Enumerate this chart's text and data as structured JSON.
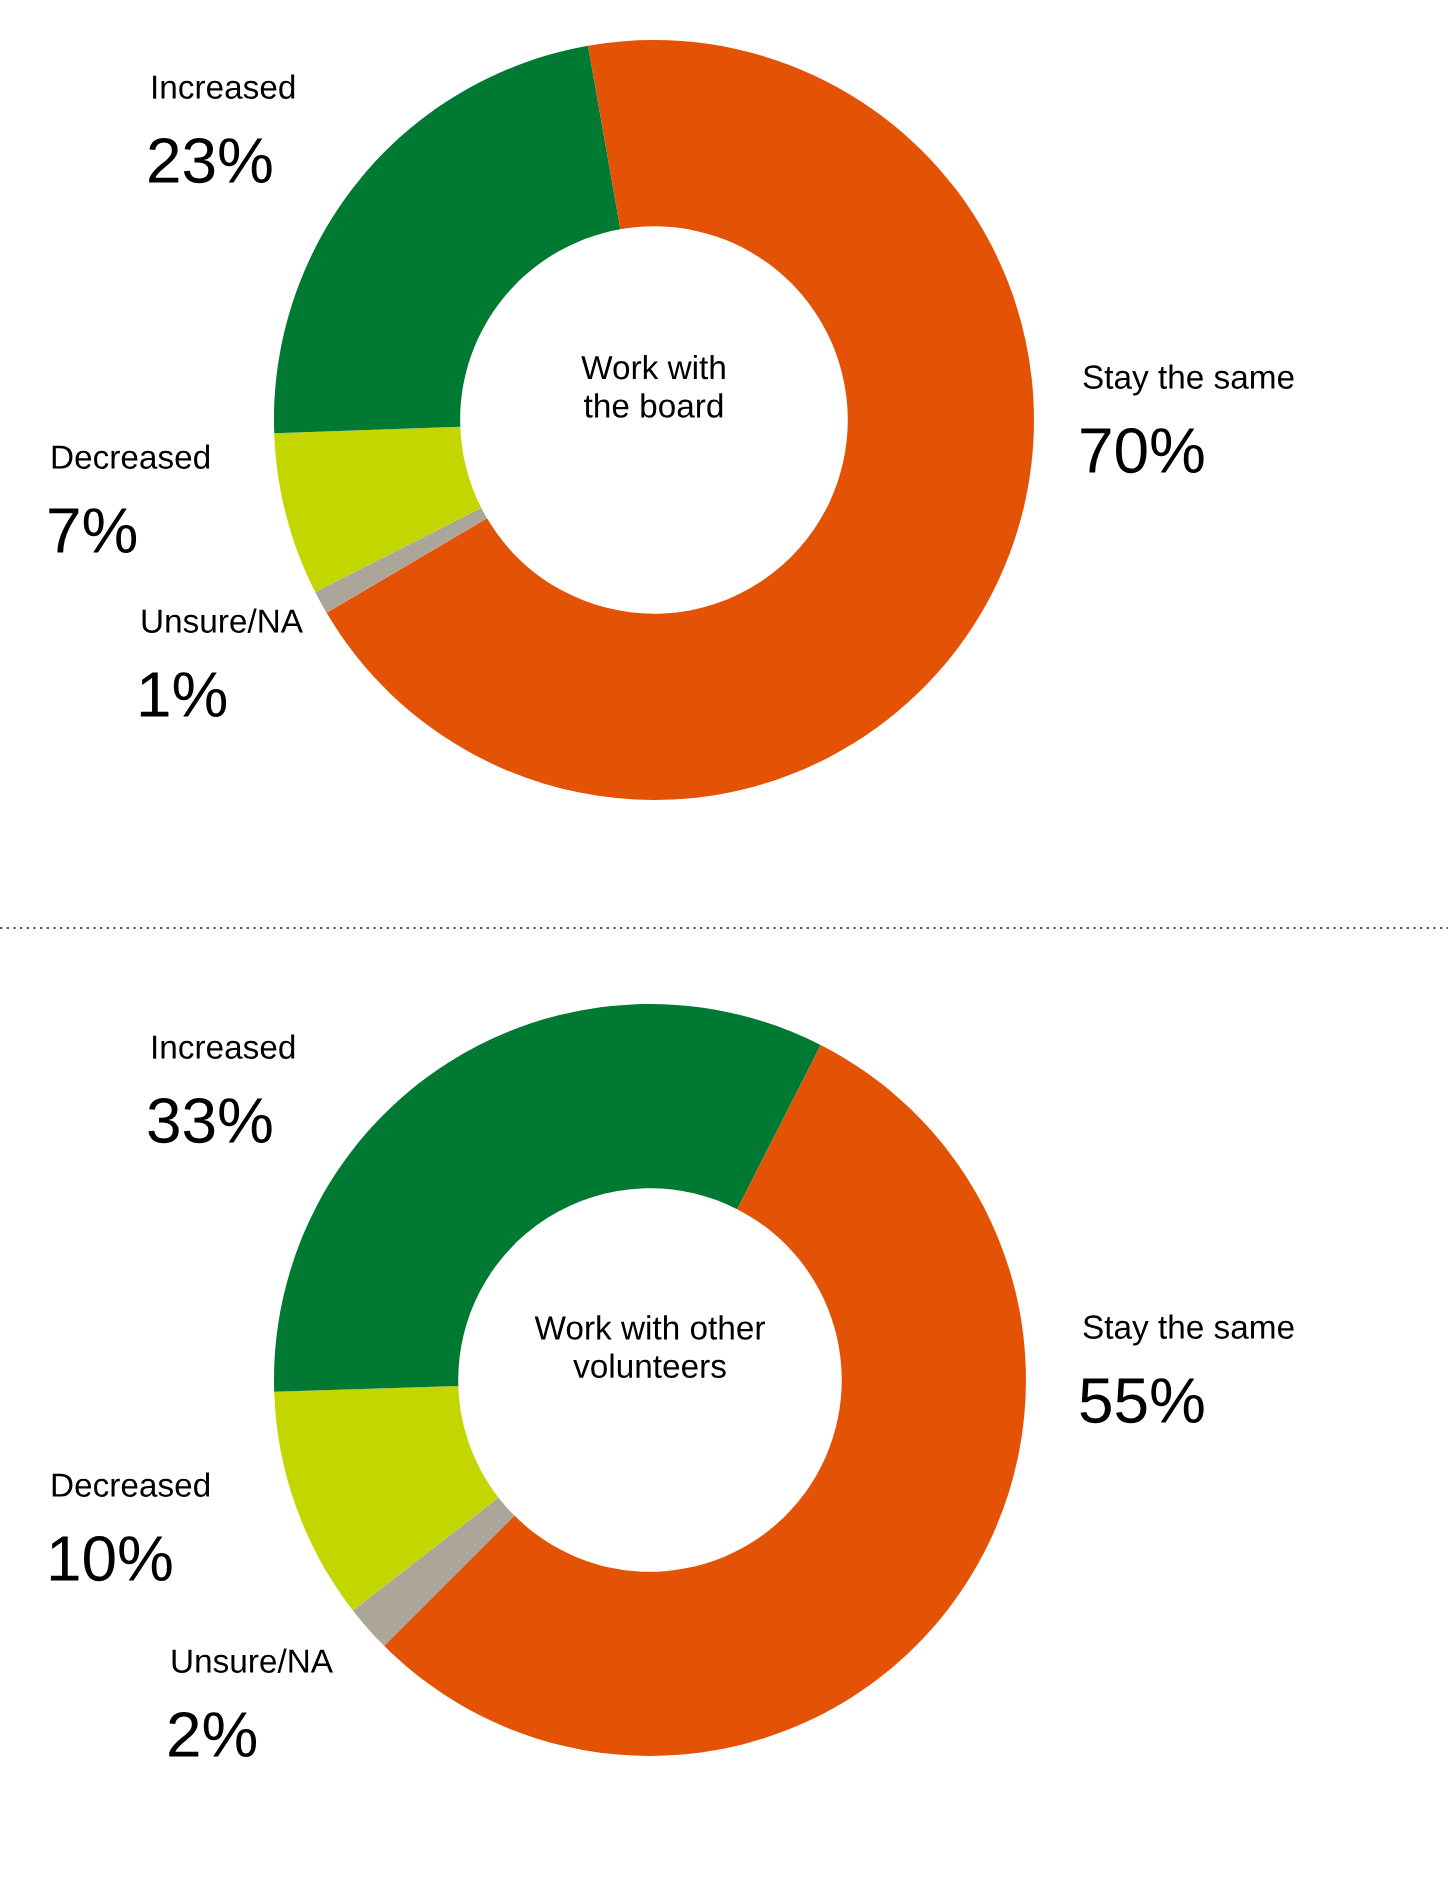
{
  "chart_data": [
    {
      "type": "donut",
      "title": "Work with\nthe board",
      "categories": [
        "Stay the same",
        "Unsure/NA",
        "Decreased",
        "Increased"
      ],
      "values": [
        70,
        1,
        7,
        23
      ],
      "colors": [
        "#e35205",
        "#aca59a",
        "#c4d600",
        "#007a33"
      ],
      "value_labels": [
        "70%",
        "1%",
        "7%",
        "23%"
      ]
    },
    {
      "type": "donut",
      "title": "Work with other\nvolunteers",
      "categories": [
        "Stay the same",
        "Unsure/NA",
        "Decreased",
        "Increased"
      ],
      "values": [
        55,
        2,
        10,
        33
      ],
      "colors": [
        "#e35205",
        "#aca59a",
        "#c4d600",
        "#007a33"
      ],
      "value_labels": [
        "55%",
        "2%",
        "10%",
        "33%"
      ]
    }
  ]
}
